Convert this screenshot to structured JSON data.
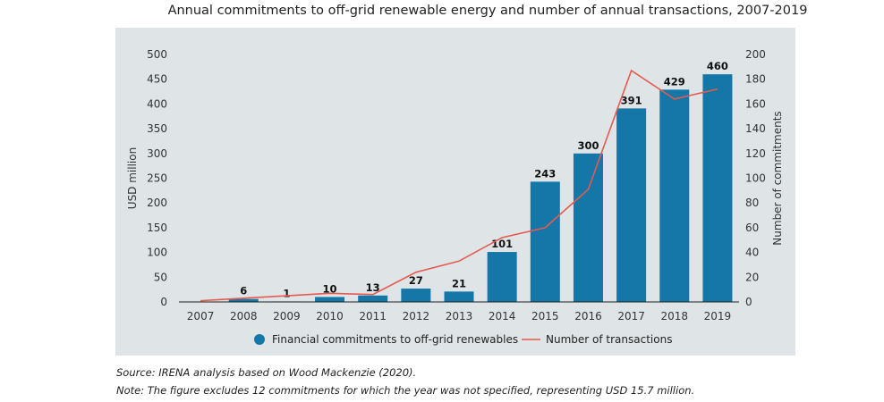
{
  "chart_data": {
    "type": "bar",
    "title": "Annual commitments to off-grid renewable energy and number of annual transactions, 2007-2019",
    "categories": [
      "2007",
      "2008",
      "2009",
      "2010",
      "2011",
      "2012",
      "2013",
      "2014",
      "2015",
      "2016",
      "2017",
      "2018",
      "2019"
    ],
    "series": [
      {
        "name": "Financial commitments to off-grid renewables",
        "type": "bar",
        "axis": "left",
        "values": [
          0,
          6,
          1,
          10,
          13,
          27,
          21,
          101,
          243,
          300,
          391,
          429,
          460
        ],
        "labels": [
          "",
          "6",
          "1",
          "10",
          "13",
          "27",
          "21",
          "101",
          "243",
          "300",
          "391",
          "429",
          "460"
        ]
      },
      {
        "name": "Number of transactions",
        "type": "line",
        "axis": "right",
        "values": [
          1,
          3,
          5,
          7,
          6,
          24,
          33,
          52,
          60,
          91,
          187,
          164,
          172
        ]
      }
    ],
    "ylabel": "USD million",
    "y2label": "Number of commitments",
    "ylim": [
      0,
      500
    ],
    "y2lim": [
      0,
      200
    ],
    "yticks": [
      "0",
      "50",
      "100",
      "150",
      "200",
      "250",
      "300",
      "350",
      "400",
      "450",
      "500"
    ],
    "y2ticks": [
      "0",
      "20",
      "40",
      "60",
      "80",
      "100",
      "120",
      "140",
      "160",
      "180",
      "200"
    ],
    "legend_position": "bottom",
    "colors": {
      "bar": "#1477a8",
      "line": "#e55a4e",
      "background": "#dfe4e7"
    }
  },
  "notes": {
    "source": "Source: IRENA analysis based on Wood Mackenzie (2020).",
    "note": "Note: The figure excludes 12 commitments for which the year was not specified, representing USD 15.7 million."
  }
}
